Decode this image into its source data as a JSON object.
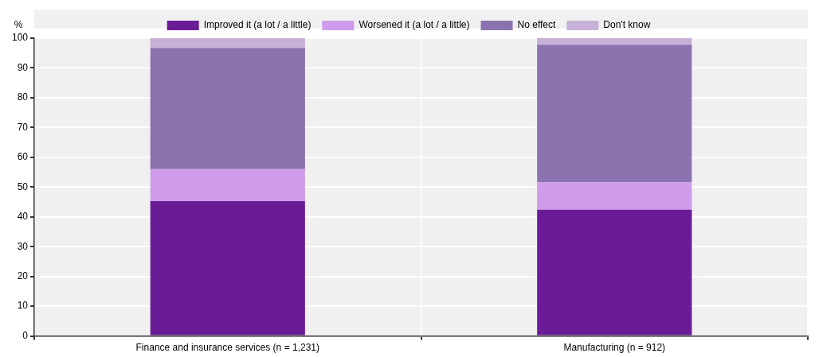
{
  "chart_data": {
    "type": "bar",
    "ylabel": "%",
    "stacked": true,
    "categories": [
      "Finance and insurance services (n = 1,231)",
      "Manufacturing (n = 912)"
    ],
    "series": [
      {
        "name": "Improved it (a lot / a little)",
        "color": "#6a1b96",
        "values": [
          45.3,
          42.4
        ]
      },
      {
        "name": "Worsened it (a lot / a little)",
        "color": "#cf9bea",
        "values": [
          10.7,
          9.2
        ]
      },
      {
        "name": "No effect",
        "color": "#8b73b0",
        "values": [
          40.7,
          46.2
        ]
      },
      {
        "name": "Don't know",
        "color": "#c7b1d6",
        "values": [
          3.3,
          2.2
        ]
      }
    ],
    "ylim": [
      0,
      100
    ],
    "yticks": [
      0,
      10,
      20,
      30,
      40,
      50,
      60,
      70,
      80,
      90,
      100
    ],
    "grid": true,
    "legend": "top"
  }
}
